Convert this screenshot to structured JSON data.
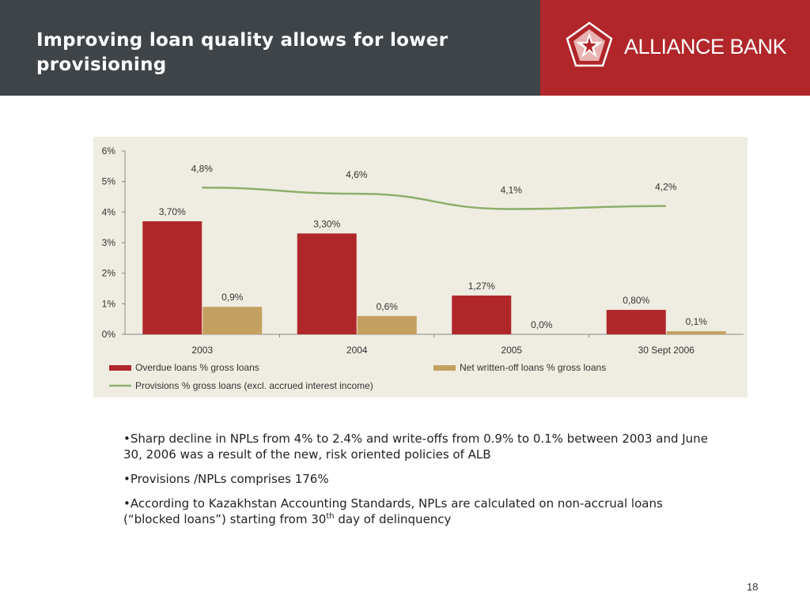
{
  "slide": {
    "title": "Improving loan quality allows for lower provisioning",
    "brand": "ALLIANCE BANK",
    "page_number": "18",
    "colors": {
      "header_dark": "#3f4448",
      "brand_red": "#b1262a",
      "chart_bg": "#efede2"
    }
  },
  "bullets": {
    "b1": "•Sharp decline in NPLs from 4% to 2.4% and write-offs from 0.9% to 0.1% between 2003 and June 30, 2006 was a result of the new, risk oriented policies of ALB",
    "b2": "•Provisions /NPLs comprises 176%",
    "b3_main": "•According to Kazakhstan Accounting Standards, NPLs are calculated on non-accrual loans (“blocked loans”) starting from 30",
    "b3_sup": "th",
    "b3_tail": " day of delinquency"
  },
  "chart_data": {
    "type": "bar",
    "categories": [
      "2003",
      "2004",
      "2005",
      "30 Sept 2006"
    ],
    "ylim": [
      0,
      6
    ],
    "yticks": [
      0,
      1,
      2,
      3,
      4,
      5,
      6
    ],
    "ytick_labels": [
      "0%",
      "1%",
      "2%",
      "3%",
      "4%",
      "5%",
      "6%"
    ],
    "series": [
      {
        "name": "Overdue loans % gross loans",
        "kind": "bar",
        "color": "#b0272a",
        "values": [
          3.7,
          3.3,
          1.27,
          0.8
        ],
        "labels": [
          "3,70%",
          "3,30%",
          "1,27%",
          "0,80%"
        ]
      },
      {
        "name": "Net written-off loans % gross loans",
        "kind": "bar",
        "color": "#c4a060",
        "values": [
          0.9,
          0.6,
          0.0,
          0.1
        ],
        "labels": [
          "0,9%",
          "0,6%",
          "0,0%",
          "0,1%"
        ]
      },
      {
        "name": "Provisions % gross loans (excl. accrued interest income)",
        "kind": "line",
        "color": "#8fae6a",
        "values": [
          4.8,
          4.6,
          4.1,
          4.2
        ],
        "labels": [
          "4,8%",
          "4,6%",
          "4,1%",
          "4,2%"
        ]
      }
    ],
    "legend_position": "bottom",
    "grid": false
  }
}
